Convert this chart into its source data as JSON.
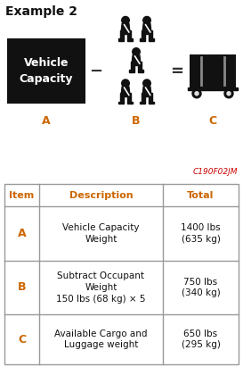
{
  "title": "Example 2",
  "title_fontsize": 10,
  "bg_color_top": "#e0e0e0",
  "bg_color_bottom": "#ffffff",
  "vehicle_capacity_box_color": "#111111",
  "vehicle_capacity_text": "Vehicle\nCapacity",
  "label_A": "A",
  "label_B": "B",
  "label_C": "C",
  "minus_sign": "−",
  "equals_sign": "=",
  "watermark": "C190F02JM",
  "watermark_color": "#cc0000",
  "header_item": "Item",
  "header_desc": "Description",
  "header_total": "Total",
  "header_color": "#cc6600",
  "rows": [
    {
      "item": "A",
      "desc": "Vehicle Capacity\nWeight",
      "total": "1400 lbs\n(635 kg)"
    },
    {
      "item": "B",
      "desc": "Subtract Occupant\nWeight\n150 lbs (68 kg) × 5",
      "total": "750 lbs\n(340 kg)"
    },
    {
      "item": "C",
      "desc": "Available Cargo and\nLuggage weight",
      "total": "650 lbs\n(295 kg)"
    }
  ],
  "table_border_color": "#999999",
  "text_color": "#111111",
  "person_color": "#111111",
  "fig_width": 2.73,
  "fig_height": 4.11
}
